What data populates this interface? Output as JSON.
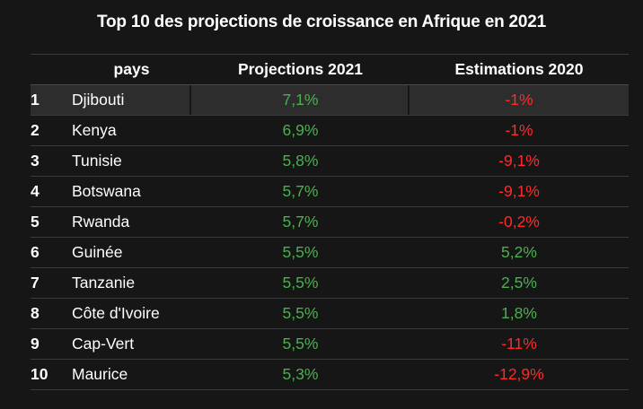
{
  "colors": {
    "positive": "#4caf50",
    "negative": "#ff2a2a",
    "background": "#161616"
  },
  "chart_data": {
    "type": "table",
    "title": "Top 10 des projections de croissance en Afrique en 2021",
    "columns": [
      "",
      "pays",
      "Projections 2021",
      "Estimations 2020"
    ],
    "rows": [
      {
        "rank": "1",
        "pays": "Djibouti",
        "proj": "7,1%",
        "est": "-1%"
      },
      {
        "rank": "2",
        "pays": "Kenya",
        "proj": "6,9%",
        "est": "-1%"
      },
      {
        "rank": "3",
        "pays": "Tunisie",
        "proj": "5,8%",
        "est": "-9,1%"
      },
      {
        "rank": "4",
        "pays": "Botswana",
        "proj": "5,7%",
        "est": "-9,1%"
      },
      {
        "rank": "5",
        "pays": "Rwanda",
        "proj": "5,7%",
        "est": "-0,2%"
      },
      {
        "rank": "6",
        "pays": "Guinée",
        "proj": "5,5%",
        "est": "5,2%"
      },
      {
        "rank": "7",
        "pays": "Tanzanie",
        "proj": "5,5%",
        "est": "2,5%"
      },
      {
        "rank": "8",
        "pays": "Côte d'Ivoire",
        "proj": "5,5%",
        "est": "1,8%"
      },
      {
        "rank": "9",
        "pays": "Cap-Vert",
        "proj": "5,5%",
        "est": "-11%"
      },
      {
        "rank": "10",
        "pays": "Maurice",
        "proj": "5,3%",
        "est": "-12,9%"
      }
    ]
  }
}
